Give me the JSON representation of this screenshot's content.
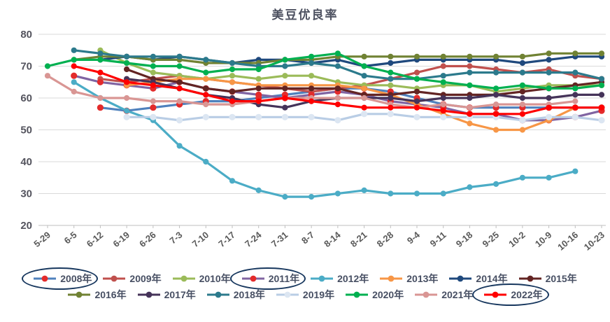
{
  "chart_data": {
    "type": "line",
    "title": "美豆优良率",
    "xlabel": "",
    "ylabel": "",
    "ylim": [
      20,
      80
    ],
    "yticks": [
      20,
      30,
      40,
      50,
      60,
      70,
      80
    ],
    "grid": "horizontal",
    "legend_position": "bottom",
    "x_label_rotation": -40,
    "categories": [
      "5-29",
      "6-5",
      "6-12",
      "6-19",
      "6-26",
      "7-3",
      "7-10",
      "7-17",
      "7-24",
      "7-31",
      "8-7",
      "8-14",
      "8-21",
      "8-28",
      "9-4",
      "9-11",
      "9-18",
      "9-25",
      "10-2",
      "10-9",
      "10-16",
      "10-23"
    ],
    "series": [
      {
        "name": "2008年",
        "color": "#4F81BD",
        "marker_color": "#e32b2b",
        "circled": true,
        "values": [
          null,
          null,
          57,
          56,
          57,
          58,
          59,
          59,
          60,
          61,
          62,
          63,
          63,
          62,
          60,
          58,
          57,
          57,
          57,
          57,
          57,
          57
        ]
      },
      {
        "name": "2009年",
        "color": "#C0504D",
        "marker_color": "#C0504D",
        "circled": false,
        "values": [
          null,
          null,
          66,
          65,
          66,
          67,
          66,
          65,
          64,
          63,
          62,
          63,
          64,
          66,
          68,
          70,
          70,
          69,
          68,
          69,
          67,
          66
        ]
      },
      {
        "name": "2010年",
        "color": "#9BBB59",
        "marker_color": "#9BBB59",
        "circled": false,
        "values": [
          null,
          null,
          75,
          71,
          68,
          67,
          66,
          67,
          66,
          67,
          67,
          65,
          64,
          64,
          63,
          64,
          64,
          62,
          63,
          64,
          64,
          64
        ]
      },
      {
        "name": "2011年",
        "color": "#8064A2",
        "marker_color": "#e32b2b",
        "circled": true,
        "values": [
          null,
          67,
          65,
          64,
          63,
          65,
          63,
          62,
          61,
          60,
          61,
          62,
          61,
          59,
          58,
          57,
          55,
          55,
          53,
          53,
          54,
          56
        ]
      },
      {
        "name": "2012年",
        "color": "#4BACC6",
        "marker_color": "#4BACC6",
        "circled": false,
        "values": [
          null,
          65,
          60,
          56,
          53,
          45,
          40,
          34,
          31,
          29,
          29,
          30,
          31,
          30,
          30,
          30,
          32,
          33,
          35,
          35,
          37,
          null
        ]
      },
      {
        "name": "2013年",
        "color": "#F79646",
        "marker_color": "#F79646",
        "circled": false,
        "values": [
          null,
          null,
          null,
          64,
          65,
          66,
          66,
          65,
          64,
          64,
          64,
          64,
          63,
          61,
          58,
          55,
          52,
          50,
          50,
          53,
          57,
          null
        ]
      },
      {
        "name": "2014年",
        "color": "#1F497D",
        "marker_color": "#1F497D",
        "circled": false,
        "values": [
          null,
          null,
          72,
          73,
          72,
          73,
          72,
          71,
          72,
          72,
          71,
          72,
          70,
          71,
          72,
          72,
          72,
          72,
          71,
          72,
          73,
          73
        ]
      },
      {
        "name": "2015年",
        "color": "#632423",
        "marker_color": "#632423",
        "circled": false,
        "values": [
          null,
          null,
          null,
          69,
          66,
          65,
          63,
          62,
          63,
          63,
          63,
          63,
          61,
          61,
          62,
          61,
          61,
          61,
          62,
          63,
          64,
          65
        ]
      },
      {
        "name": "2016年",
        "color": "#708233",
        "marker_color": "#708233",
        "circled": false,
        "values": [
          null,
          72,
          73,
          73,
          72,
          72,
          71,
          71,
          71,
          72,
          72,
          73,
          73,
          73,
          73,
          73,
          73,
          73,
          73,
          74,
          74,
          74
        ]
      },
      {
        "name": "2017年",
        "color": "#453359",
        "marker_color": "#453359",
        "circled": false,
        "values": [
          null,
          null,
          null,
          66,
          65,
          63,
          61,
          60,
          58,
          57,
          59,
          60,
          60,
          60,
          59,
          60,
          60,
          61,
          60,
          60,
          61,
          61
        ]
      },
      {
        "name": "2018年",
        "color": "#2c7a8c",
        "marker_color": "#2c7a8c",
        "circled": false,
        "values": [
          null,
          75,
          74,
          73,
          73,
          73,
          72,
          71,
          70,
          70,
          71,
          70,
          67,
          66,
          66,
          67,
          68,
          68,
          68,
          68,
          68,
          66
        ]
      },
      {
        "name": "2019年",
        "color": "#b9cde5",
        "marker_color": "#dce6f2",
        "circled": false,
        "values": [
          null,
          null,
          null,
          54,
          54,
          53,
          54,
          54,
          54,
          54,
          54,
          53,
          55,
          55,
          54,
          54,
          54,
          54,
          53,
          54,
          54,
          53
        ]
      },
      {
        "name": "2020年",
        "color": "#00B050",
        "marker_color": "#00B050",
        "circled": false,
        "values": [
          70,
          72,
          72,
          71,
          70,
          70,
          68,
          69,
          69,
          72,
          73,
          74,
          70,
          68,
          66,
          65,
          64,
          63,
          64,
          63,
          63,
          64
        ]
      },
      {
        "name": "2021年",
        "color": "#D99694",
        "marker_color": "#D99694",
        "circled": false,
        "values": [
          67,
          62,
          60,
          60,
          59,
          59,
          58,
          58,
          59,
          60,
          60,
          60,
          60,
          58,
          57,
          58,
          57,
          58,
          58,
          58,
          59,
          null
        ]
      },
      {
        "name": "2022年",
        "color": "#FF0000",
        "marker_color": "#FF0000",
        "circled": true,
        "values": [
          null,
          70,
          68,
          65,
          64,
          63,
          61,
          59,
          59,
          60,
          59,
          58,
          57,
          57,
          57,
          56,
          55,
          55,
          55,
          57,
          57,
          57
        ]
      }
    ]
  },
  "colors": {
    "title": "#4d5160",
    "axis_labels": "#595959",
    "y_axis_labels": "#54545e",
    "gridline": "#d9d9d9",
    "axis_line": "#bfbfbf",
    "legend_text": "#474f63",
    "annotation_ellipse": "#17375E",
    "background": "#ffffff"
  }
}
